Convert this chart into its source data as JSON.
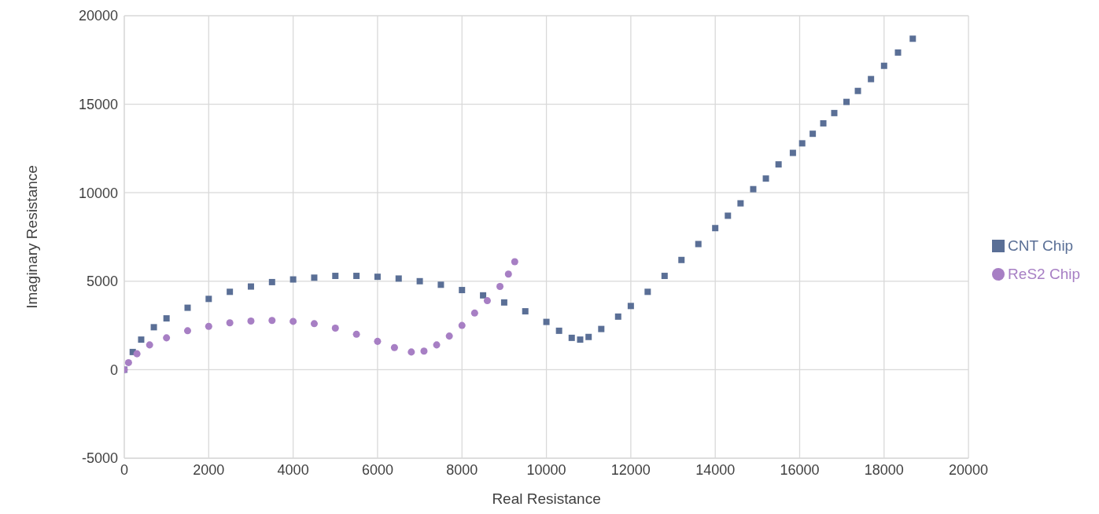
{
  "chart_data": {
    "type": "scatter",
    "xlabel": "Real Resistance",
    "ylabel": "Imaginary Resistance",
    "xlim": [
      0,
      20000
    ],
    "xticks": [
      0,
      2000,
      4000,
      6000,
      8000,
      10000,
      12000,
      14000,
      16000,
      18000,
      20000
    ],
    "ylim": [
      -5000,
      20000
    ],
    "yticks": [
      -5000,
      0,
      5000,
      10000,
      15000,
      20000
    ],
    "grid": true,
    "legend": "right",
    "series": [
      {
        "name": "CNT Chip",
        "color": "#5a6f96",
        "marker": "square",
        "x": [
          0,
          200,
          400,
          700,
          1000,
          1500,
          2000,
          2500,
          3000,
          3500,
          4000,
          4500,
          5000,
          5500,
          6000,
          6500,
          7000,
          7500,
          8000,
          8500,
          9000,
          9500,
          10000,
          10300,
          10600,
          10800,
          11000,
          11300,
          11700,
          12000,
          12400,
          12800,
          13200,
          13600,
          14000,
          14300,
          14600,
          14900,
          15200,
          15500,
          15840,
          16060,
          16310,
          16560,
          16820,
          17110,
          17380,
          17690,
          18000,
          18330,
          18680
        ],
        "values": [
          0,
          1000,
          1700,
          2400,
          2900,
          3500,
          4000,
          4400,
          4700,
          4950,
          5100,
          5200,
          5300,
          5300,
          5250,
          5150,
          5000,
          4800,
          4500,
          4200,
          3800,
          3300,
          2700,
          2200,
          1800,
          1700,
          1850,
          2300,
          3000,
          3600,
          4400,
          5300,
          6200,
          7100,
          8000,
          8700,
          9400,
          10200,
          10800,
          11600,
          12250,
          12790,
          13330,
          13920,
          14500,
          15130,
          15750,
          16420,
          17170,
          17920,
          18700
        ]
      },
      {
        "name": "ReS2 Chip",
        "color": "#a77fc4",
        "marker": "circle",
        "x": [
          0,
          100,
          300,
          600,
          1000,
          1500,
          2000,
          2500,
          3000,
          3500,
          4000,
          4500,
          5000,
          5500,
          6000,
          6400,
          6800,
          7100,
          7400,
          7700,
          8000,
          8300,
          8600,
          8900,
          9100,
          9250
        ],
        "values": [
          0,
          400,
          900,
          1400,
          1800,
          2200,
          2450,
          2650,
          2750,
          2780,
          2730,
          2600,
          2350,
          2000,
          1600,
          1250,
          1000,
          1050,
          1400,
          1900,
          2500,
          3200,
          3900,
          4700,
          5400,
          6100
        ]
      }
    ]
  }
}
